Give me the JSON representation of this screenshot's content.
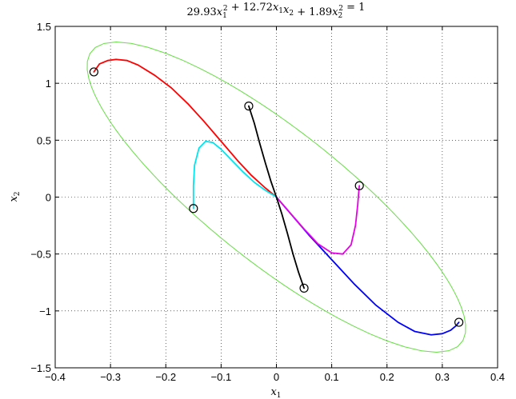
{
  "chart_data": {
    "type": "line",
    "title": "29.93x_1^2 + 12.72x_1x_2 + 1.89x_2^2 = 1",
    "title_parts": [
      {
        "t": "29.93",
        "italic": false
      },
      {
        "t": "x",
        "italic": true
      },
      {
        "t": "1",
        "sub": true,
        "sup": "2"
      },
      {
        "t": " + 12.72",
        "italic": false
      },
      {
        "t": "x",
        "italic": true
      },
      {
        "t": "1",
        "sub": true
      },
      {
        "t": "x",
        "italic": true
      },
      {
        "t": "2",
        "sub": true
      },
      {
        "t": " + 1.89",
        "italic": false
      },
      {
        "t": "x",
        "italic": true
      },
      {
        "t": "2",
        "sub": true,
        "sup": "2"
      },
      {
        "t": " = 1",
        "italic": false
      }
    ],
    "xlabel": "x",
    "xlabel_sub": "1",
    "ylabel": "x",
    "ylabel_sub": "2",
    "xlim": [
      -0.4,
      0.4
    ],
    "ylim": [
      -1.5,
      1.5
    ],
    "xticks": [
      -0.4,
      -0.3,
      -0.2,
      -0.1,
      0,
      0.1,
      0.2,
      0.3,
      0.4
    ],
    "xtick_labels": [
      "−0.4",
      "−0.3",
      "−0.2",
      "−0.1",
      "0",
      "0.1",
      "0.2",
      "0.3",
      "0.4"
    ],
    "yticks": [
      -1.5,
      -1,
      -0.5,
      0,
      0.5,
      1,
      1.5
    ],
    "ytick_labels": [
      "−1.5",
      "−1",
      "−0.5",
      "0",
      "0.5",
      "1",
      "1.5"
    ],
    "grid": true,
    "ellipse": {
      "color": "#66dd44",
      "coeffs": {
        "a": 29.93,
        "b": 12.72,
        "c": 1.89
      }
    },
    "series": [
      {
        "color": "#ff0000",
        "x": [
          -0.33,
          -0.32,
          -0.305,
          -0.29,
          -0.27,
          -0.25,
          -0.22,
          -0.19,
          -0.16,
          -0.13,
          -0.1,
          -0.07,
          -0.045,
          -0.02,
          0.0
        ],
        "y": [
          1.1,
          1.17,
          1.2,
          1.21,
          1.2,
          1.16,
          1.07,
          0.96,
          0.82,
          0.66,
          0.49,
          0.32,
          0.19,
          0.08,
          0.0
        ]
      },
      {
        "color": "#0000ff",
        "x": [
          0.0,
          0.03,
          0.06,
          0.1,
          0.14,
          0.18,
          0.22,
          0.25,
          0.28,
          0.3,
          0.315,
          0.325,
          0.33
        ],
        "y": [
          0.0,
          -0.17,
          -0.34,
          -0.55,
          -0.76,
          -0.95,
          -1.1,
          -1.18,
          -1.21,
          -1.2,
          -1.17,
          -1.13,
          -1.1
        ]
      },
      {
        "color": "#00e5ee",
        "x": [
          -0.15,
          -0.15,
          -0.148,
          -0.14,
          -0.128,
          -0.115,
          -0.1,
          -0.08,
          -0.06,
          -0.04,
          -0.02,
          0.0
        ],
        "y": [
          -0.1,
          0.1,
          0.28,
          0.43,
          0.49,
          0.48,
          0.42,
          0.32,
          0.22,
          0.13,
          0.06,
          0.0
        ]
      },
      {
        "color": "#e600e6",
        "x": [
          0.0,
          0.025,
          0.05,
          0.075,
          0.1,
          0.12,
          0.135,
          0.143,
          0.147,
          0.149,
          0.15
        ],
        "y": [
          0.0,
          -0.14,
          -0.28,
          -0.41,
          -0.49,
          -0.5,
          -0.42,
          -0.25,
          -0.07,
          0.05,
          0.1
        ]
      },
      {
        "color": "#000000",
        "x": [
          -0.05,
          -0.04,
          -0.03,
          -0.02,
          -0.01,
          0.0,
          0.01,
          0.02,
          0.03,
          0.04,
          0.05
        ],
        "y": [
          0.8,
          0.65,
          0.47,
          0.3,
          0.14,
          0.0,
          -0.15,
          -0.32,
          -0.5,
          -0.66,
          -0.8
        ]
      }
    ],
    "start_points": [
      {
        "x": -0.33,
        "y": 1.1
      },
      {
        "x": -0.05,
        "y": 0.8
      },
      {
        "x": -0.15,
        "y": -0.1
      },
      {
        "x": 0.15,
        "y": 0.1
      },
      {
        "x": 0.05,
        "y": -0.8
      },
      {
        "x": 0.33,
        "y": -1.1
      }
    ]
  }
}
